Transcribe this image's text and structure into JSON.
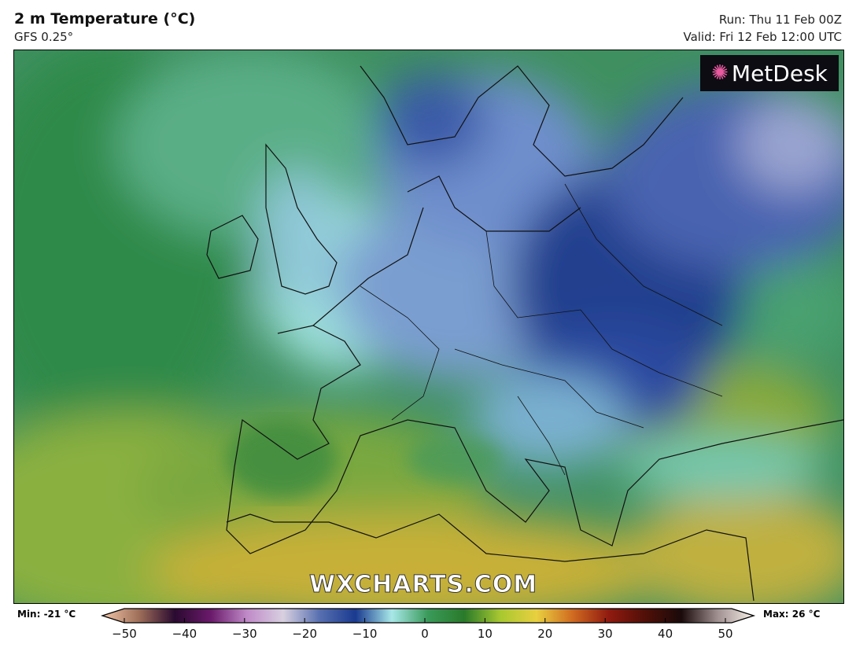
{
  "header": {
    "title": "2 m Temperature (°C)",
    "model": "GFS 0.25°",
    "run": "Run: Thu 11 Feb 00Z",
    "valid": "Valid: Fri 12 Feb 12:00 UTC"
  },
  "logo": {
    "text": "MetDesk",
    "icon": "metdesk-burst-icon"
  },
  "watermark": "WXCHARTS.COM",
  "legend": {
    "min_label": "Min: -21 °C",
    "max_label": "Max: 26 °C",
    "ticks": [
      "−50",
      "−40",
      "−30",
      "−20",
      "−10",
      "0",
      "10",
      "20",
      "30",
      "40",
      "50"
    ],
    "colors": [
      "#f2c6a8",
      "#a0705a",
      "#2a0a30",
      "#6a1a6a",
      "#c08ac8",
      "#d8d0e0",
      "#5870b0",
      "#1a3a90",
      "#a8e8e8",
      "#3a9a5a",
      "#2a7a2a",
      "#a8c830",
      "#e8d040",
      "#d06a20",
      "#901a10",
      "#501008",
      "#1a0a0a",
      "#a09090",
      "#f8f0e8"
    ]
  }
}
